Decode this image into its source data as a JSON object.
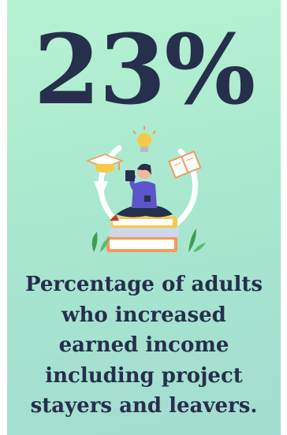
{
  "stat": {
    "value": "23%"
  },
  "caption": {
    "lines": [
      "Percentage of adults",
      "who increased",
      "earned income",
      "including project",
      "stayers and leavers."
    ]
  },
  "illustration": {
    "icons": [
      "lightbulb-icon",
      "graduation-cap-icon",
      "open-book-icon",
      "cycle-arrow-icon",
      "reading-person",
      "book-stack",
      "plant-icon"
    ],
    "colors": {
      "navy": "#262f4c",
      "purple": "#5b55c9",
      "orange": "#f29a5c",
      "yellow": "#f7c948",
      "green": "#3f9b57",
      "white": "#ffffff"
    }
  }
}
